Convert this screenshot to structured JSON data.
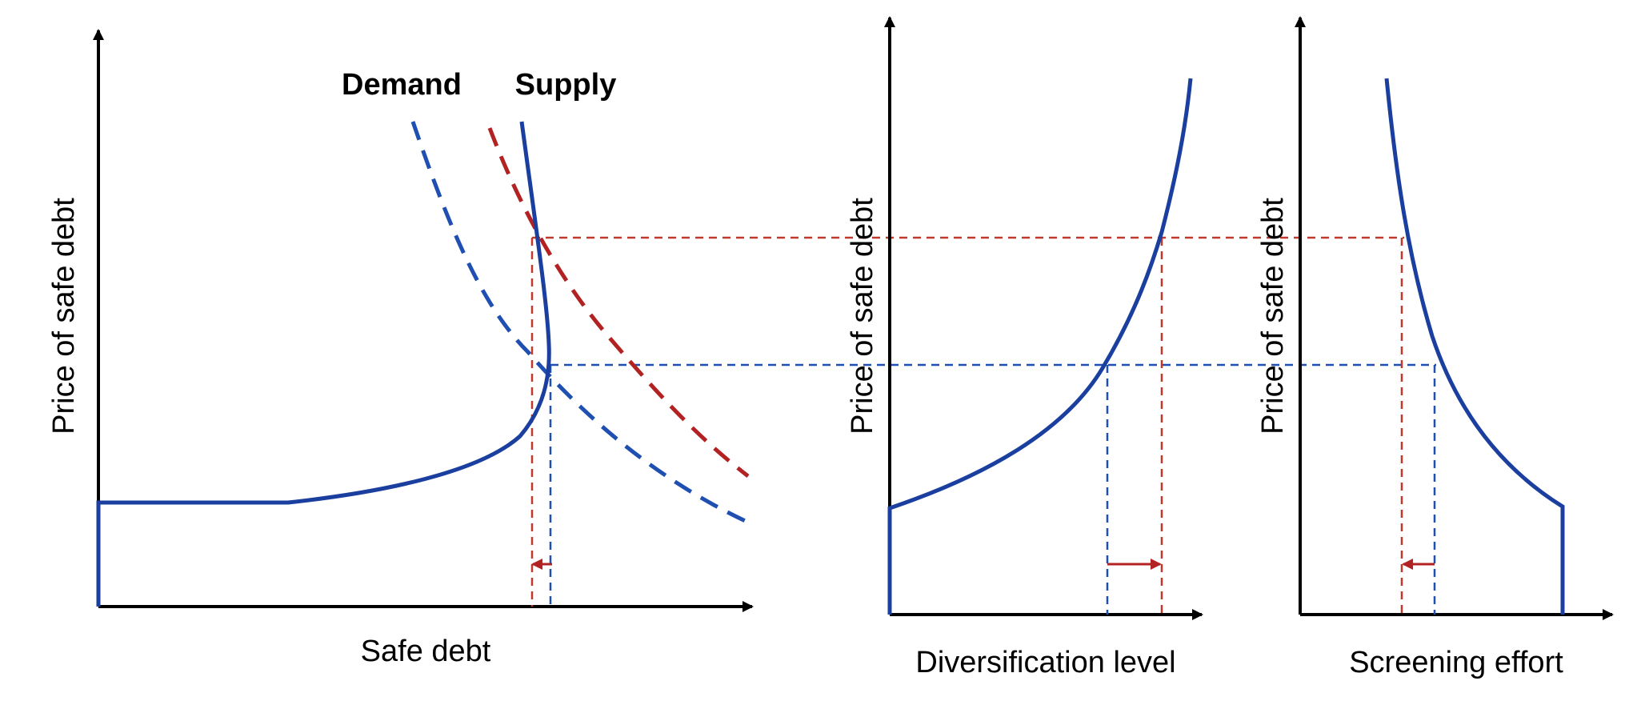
{
  "colors": {
    "supply_curve": "#1a3f9e",
    "demand_initial": "#1f4fb0",
    "demand_shifted": "#b22222",
    "guide_initial": "#1f4fb0",
    "guide_shifted": "#c0392b",
    "axis": "#000000"
  },
  "panel_left": {
    "x_axis_label": "Safe debt",
    "y_axis_label": "Price of safe debt",
    "demand_label": "Demand",
    "supply_label": "Supply"
  },
  "panel_middle": {
    "x_axis_label": "Diversification level",
    "y_axis_label": "Price of safe debt"
  },
  "panel_right": {
    "x_axis_label": "Screening effort",
    "y_axis_label": "Price of safe debt"
  }
}
